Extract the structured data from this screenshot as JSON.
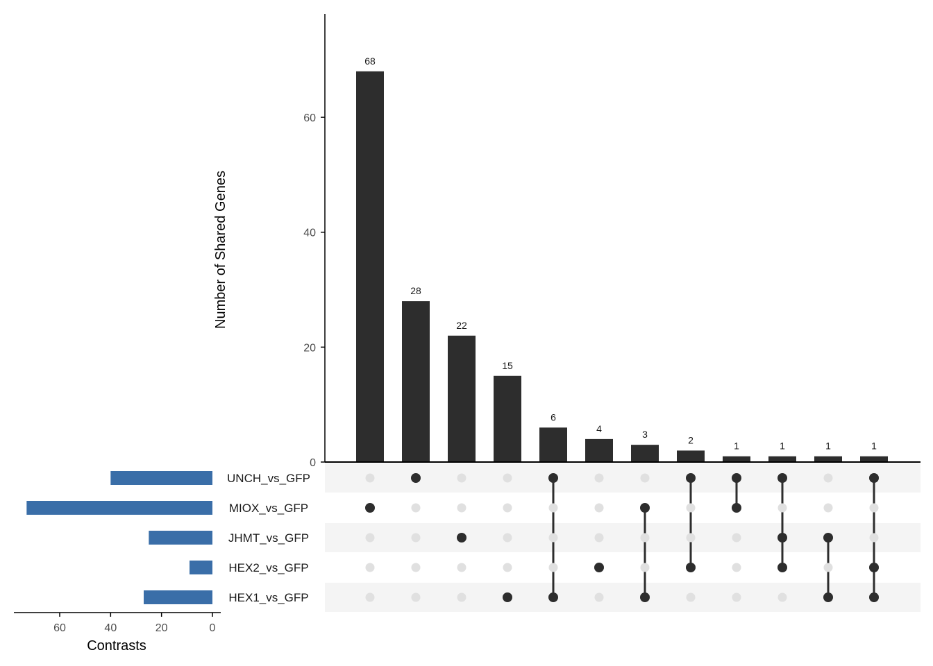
{
  "chart_data": {
    "type": "upset",
    "intersections": {
      "ylabel": "Number of Shared Genes",
      "ylim": [
        0,
        78
      ],
      "yticks": [
        0,
        20,
        40,
        60
      ],
      "values": [
        68,
        28,
        22,
        15,
        6,
        4,
        3,
        2,
        1,
        1,
        1,
        1
      ],
      "members": [
        [
          "MIOX_vs_GFP"
        ],
        [
          "UNCH_vs_GFP"
        ],
        [
          "JHMT_vs_GFP"
        ],
        [
          "HEX1_vs_GFP"
        ],
        [
          "UNCH_vs_GFP",
          "HEX1_vs_GFP"
        ],
        [
          "HEX2_vs_GFP"
        ],
        [
          "MIOX_vs_GFP",
          "HEX1_vs_GFP"
        ],
        [
          "UNCH_vs_GFP",
          "HEX2_vs_GFP"
        ],
        [
          "UNCH_vs_GFP",
          "MIOX_vs_GFP"
        ],
        [
          "UNCH_vs_GFP",
          "JHMT_vs_GFP",
          "HEX2_vs_GFP"
        ],
        [
          "JHMT_vs_GFP",
          "HEX1_vs_GFP"
        ],
        [
          "UNCH_vs_GFP",
          "HEX2_vs_GFP",
          "HEX1_vs_GFP"
        ]
      ]
    },
    "sets": {
      "names": [
        "UNCH_vs_GFP",
        "MIOX_vs_GFP",
        "JHMT_vs_GFP",
        "HEX2_vs_GFP",
        "HEX1_vs_GFP"
      ],
      "sizes": [
        40,
        73,
        25,
        9,
        27
      ],
      "xlabel": "Contrasts",
      "xlim": [
        0,
        78
      ],
      "xticks": [
        0,
        20,
        40,
        60
      ],
      "bar_color": "#3a6ea8"
    },
    "colors": {
      "bar": "#2d2d2d",
      "dot_active": "#2d2d2d",
      "dot_inactive": "#e0e0e0",
      "stripe": "#f4f4f4"
    }
  }
}
